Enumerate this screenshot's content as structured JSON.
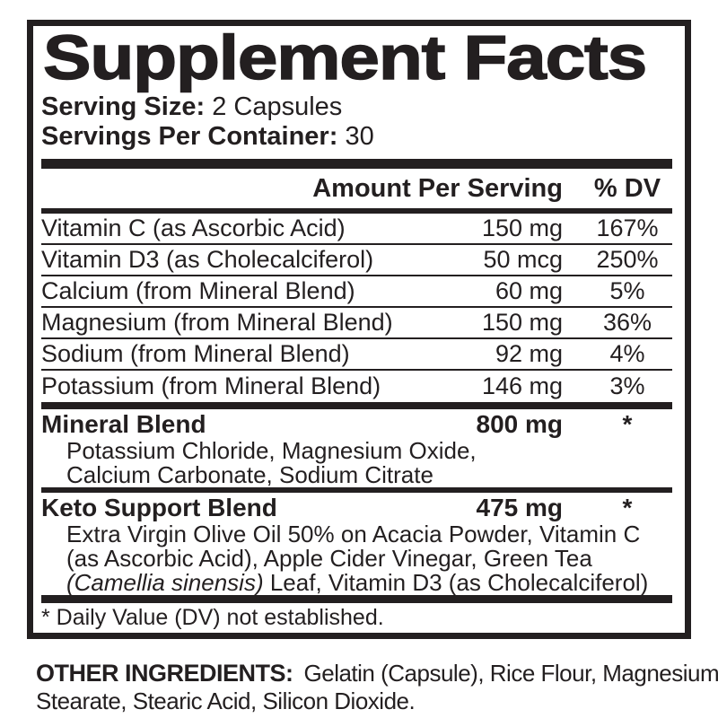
{
  "panel": {
    "title": "Supplement Facts",
    "serving_size": {
      "label": "Serving Size:",
      "value": "2 Capsules"
    },
    "servings_per_container": {
      "label": "Servings Per Container:",
      "value": "30"
    },
    "columns": {
      "amount_header": "Amount Per Serving",
      "dv_header": "% DV"
    },
    "nutrients": [
      {
        "name": "Vitamin C (as Ascorbic Acid)",
        "amount": "150 mg",
        "dv": "167%"
      },
      {
        "name": "Vitamin D3 (as Cholecalciferol)",
        "amount": "50 mcg",
        "dv": "250%"
      },
      {
        "name": "Calcium (from Mineral Blend)",
        "amount": "60 mg",
        "dv": "5%"
      },
      {
        "name": "Magnesium (from Mineral Blend)",
        "amount": "150 mg",
        "dv": "36%"
      },
      {
        "name": "Sodium (from Mineral Blend)",
        "amount": "92 mg",
        "dv": "4%"
      },
      {
        "name": "Potassium (from Mineral Blend)",
        "amount": "146 mg",
        "dv": "3%"
      }
    ],
    "blends": [
      {
        "name": "Mineral Blend",
        "amount": "800 mg",
        "dv": "*",
        "line1": "Potassium Chloride, Magnesium Oxide,",
        "line2": "Calcium Carbonate, Sodium Citrate"
      },
      {
        "name": "Keto Support Blend",
        "amount": "475 mg",
        "dv": "*",
        "line1": "Extra Virgin Olive Oil 50% on Acacia Powder, Vitamin C",
        "line2": "(as Ascorbic Acid), Apple Cider Vinegar, Green Tea",
        "line3_italic": "(Camellia sinensis)",
        "line3_rest": " Leaf, Vitamin D3 (as Cholecalciferol)"
      }
    ],
    "footnote": "* Daily Value (DV) not established."
  },
  "other_ingredients": {
    "label": "OTHER INGREDIENTS:",
    "value": "Gelatin (Capsule), Rice Flour, Magnesium Stearate, Stearic Acid, Silicon Dioxide."
  },
  "colors": {
    "ink": "#231f20",
    "background": "#ffffff"
  }
}
